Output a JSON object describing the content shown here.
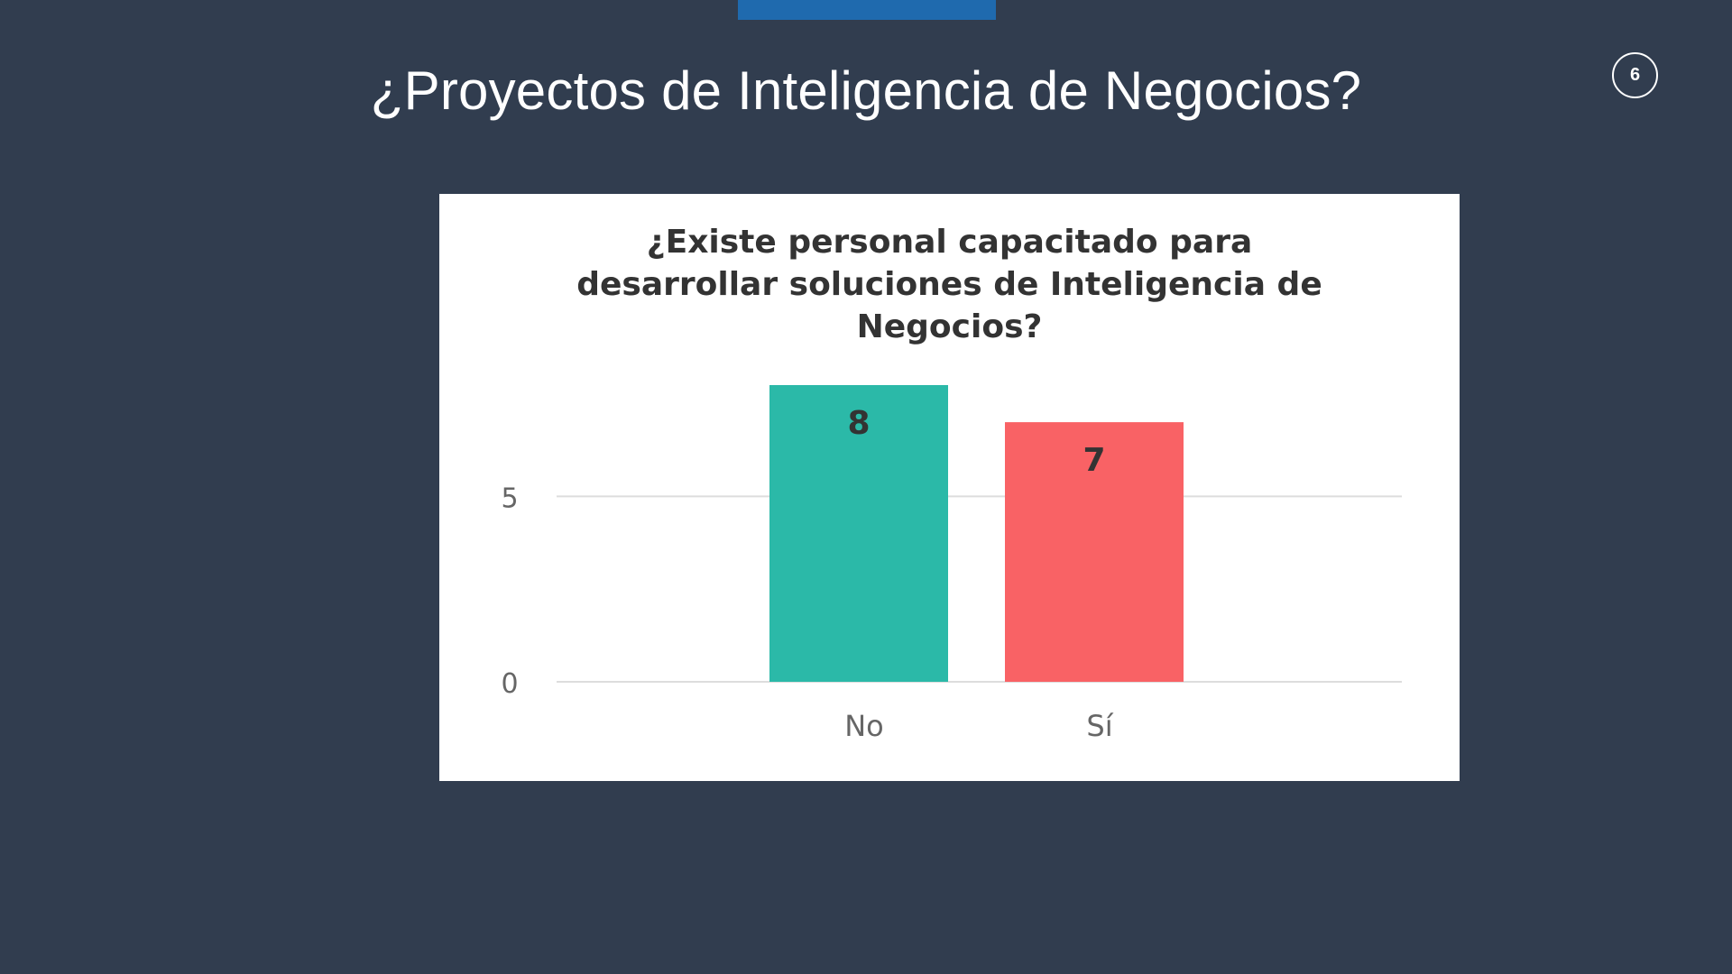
{
  "slide": {
    "title": "¿Proyectos de Inteligencia de Negocios?",
    "page_number": "6"
  },
  "colors": {
    "background": "#313d4f",
    "accent": "#1f6aae",
    "bar_no": "#2bb9a8",
    "bar_si": "#f96265"
  },
  "chart_data": {
    "type": "bar",
    "title_lines": [
      "¿Existe personal capacitado para",
      "desarrollar soluciones de Inteligencia de",
      "Negocios?"
    ],
    "categories": [
      "No",
      "Sí"
    ],
    "values": [
      8,
      7
    ],
    "data_labels": [
      "8",
      "7"
    ],
    "colors": [
      "#2bb9a8",
      "#f96265"
    ],
    "ylim": [
      0,
      8
    ],
    "yticks": [
      0,
      5
    ],
    "ytick_labels": [
      "0",
      "5"
    ],
    "grid": true,
    "legend": "none"
  }
}
